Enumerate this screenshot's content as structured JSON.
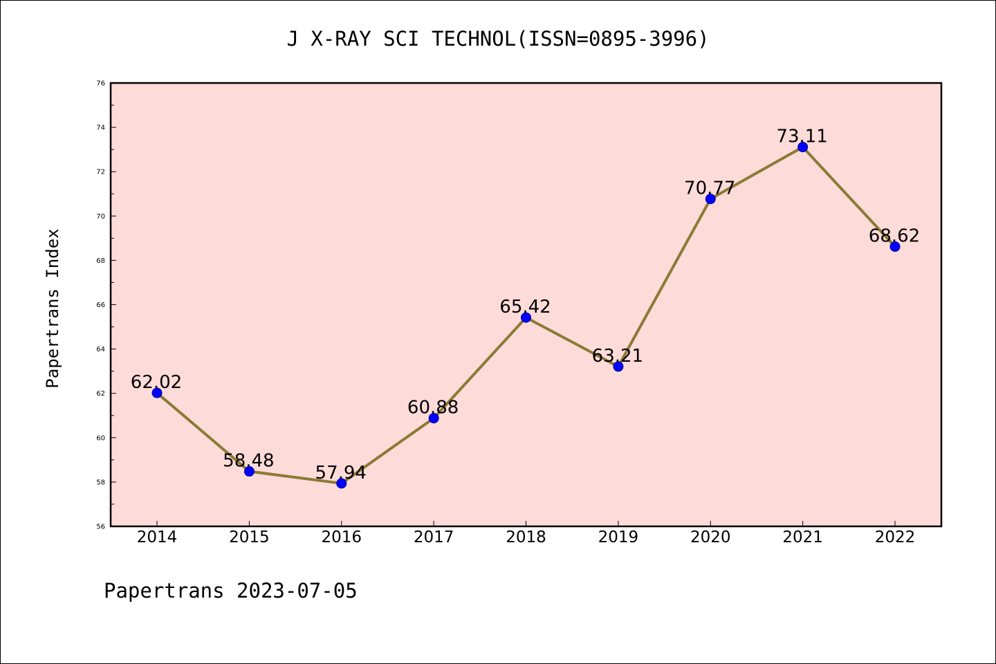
{
  "chart_data": {
    "type": "line",
    "title": "J X-RAY SCI TECHNOL(ISSN=0895-3996)",
    "ylabel": "Papertrans Index",
    "xlabel": "",
    "footer": "Papertrans 2023-07-05",
    "categories": [
      "2014",
      "2015",
      "2016",
      "2017",
      "2018",
      "2019",
      "2020",
      "2021",
      "2022"
    ],
    "values": [
      62.02,
      58.48,
      57.94,
      60.88,
      65.42,
      63.21,
      70.77,
      73.11,
      68.62
    ],
    "data_labels": [
      "62.02",
      "58.48",
      "57.94",
      "60.88",
      "65.42",
      "63.21",
      "70.77",
      "73.11",
      "68.62"
    ],
    "ylim": [
      56,
      76
    ],
    "yticks": [
      "56",
      "58",
      "60",
      "62",
      "64",
      "66",
      "68",
      "70",
      "72",
      "74",
      "76"
    ],
    "grid": false,
    "colors": {
      "plot_background": "#fddbd9",
      "line": "#8b7a35",
      "marker_fill": "#0000ff",
      "marker_edge": "#00008b"
    }
  }
}
